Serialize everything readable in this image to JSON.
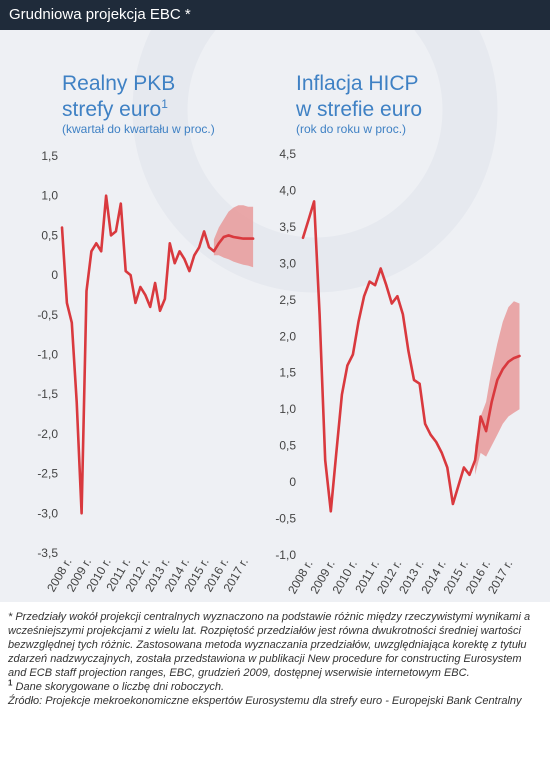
{
  "header": {
    "title": "Grudniowa projekcja EBC *"
  },
  "colors": {
    "line": "#d9393e",
    "band": "#e79a9a",
    "title": "#3f81c4",
    "panel": "#eef0f4",
    "header": "#1f2b3a"
  },
  "chart_data": [
    {
      "type": "line",
      "title": "Realny PKB",
      "title_line2": "strefy euro",
      "title_superscript": "1",
      "subtitle": "(kwartał do kwartału w proc.)",
      "xlabel": "",
      "ylabel": "",
      "ylim": [
        -3.5,
        1.5
      ],
      "yticks": [
        1.5,
        1.0,
        0.5,
        0,
        -0.5,
        -1.0,
        -1.5,
        -2.0,
        -2.5,
        -3.0,
        -3.5
      ],
      "ytick_labels": [
        "1,5",
        "1,0",
        "0,5",
        "0",
        "-0,5",
        "-1,0",
        "-1,5",
        "-2,0",
        "-2,5",
        "-3,0",
        "-3,5"
      ],
      "xlim": [
        2008.0,
        2018.0
      ],
      "xtick_values": [
        2008,
        2009,
        2010,
        2011,
        2012,
        2013,
        2014,
        2015,
        2016,
        2017
      ],
      "xtick_labels": [
        "2008 r.",
        "2009 r.",
        "2010 r.",
        "2011 r.",
        "2012 r.",
        "2013 r.",
        "2014 r.",
        "2015 r.",
        "2016 r.",
        "2017 r."
      ],
      "grid": false,
      "series": [
        {
          "x": [
            2008.0,
            2008.25,
            2008.5,
            2008.75,
            2009.0,
            2009.25,
            2009.5,
            2009.75,
            2010.0,
            2010.25,
            2010.5,
            2010.75,
            2011.0,
            2011.25,
            2011.5,
            2011.75,
            2012.0,
            2012.25,
            2012.5,
            2012.75,
            2013.0,
            2013.25,
            2013.5,
            2013.75,
            2014.0,
            2014.25,
            2014.5,
            2014.75,
            2015.0,
            2015.25,
            2015.5,
            2015.75,
            2016.0,
            2016.25,
            2016.5,
            2016.75,
            2017.0,
            2017.25,
            2017.5,
            2017.75
          ],
          "values": [
            0.6,
            -0.35,
            -0.6,
            -1.6,
            -3.0,
            -0.2,
            0.3,
            0.4,
            0.3,
            1.0,
            0.5,
            0.55,
            0.9,
            0.05,
            0.0,
            -0.35,
            -0.15,
            -0.25,
            -0.4,
            -0.1,
            -0.45,
            -0.3,
            0.4,
            0.15,
            0.3,
            0.2,
            0.05,
            0.25,
            0.35,
            0.55,
            0.35,
            0.3,
            0.4,
            0.48,
            0.5,
            0.48,
            0.47,
            0.46,
            0.46,
            0.46
          ]
        }
      ],
      "band": {
        "x": [
          2015.75,
          2016.0,
          2016.25,
          2016.5,
          2016.75,
          2017.0,
          2017.25,
          2017.5,
          2017.75
        ],
        "upper": [
          0.45,
          0.6,
          0.7,
          0.8,
          0.85,
          0.88,
          0.88,
          0.86,
          0.86
        ],
        "lower": [
          0.25,
          0.25,
          0.22,
          0.2,
          0.17,
          0.15,
          0.13,
          0.12,
          0.1
        ]
      }
    },
    {
      "type": "line",
      "title": "Inflacja HICP",
      "title_line2": "w strefie euro",
      "title_superscript": "",
      "subtitle": "(rok do roku w proc.)",
      "xlabel": "",
      "ylabel": "",
      "ylim": [
        -1.0,
        4.5
      ],
      "yticks": [
        4.5,
        4.0,
        3.5,
        3.0,
        2.5,
        2.0,
        1.5,
        1.0,
        0.5,
        0,
        -0.5,
        -1.0
      ],
      "ytick_labels": [
        "4,5",
        "4,0",
        "3,5",
        "3,0",
        "2,5",
        "2,0",
        "1,5",
        "1,0",
        "0,5",
        "0",
        "-0,5",
        "-1,0"
      ],
      "xlim": [
        2008.0,
        2018.0
      ],
      "xtick_values": [
        2008,
        2009,
        2010,
        2011,
        2012,
        2013,
        2014,
        2015,
        2016,
        2017
      ],
      "xtick_labels": [
        "2008 r.",
        "2009 r.",
        "2010 r.",
        "2011 r.",
        "2012 r.",
        "2013 r.",
        "2014 r.",
        "2015 r.",
        "2016 r.",
        "2017 r."
      ],
      "grid": false,
      "series": [
        {
          "x": [
            2008.0,
            2008.25,
            2008.5,
            2008.75,
            2009.0,
            2009.25,
            2009.5,
            2009.75,
            2010.0,
            2010.25,
            2010.5,
            2010.75,
            2011.0,
            2011.25,
            2011.5,
            2011.75,
            2012.0,
            2012.25,
            2012.5,
            2012.75,
            2013.0,
            2013.25,
            2013.5,
            2013.75,
            2014.0,
            2014.25,
            2014.5,
            2014.75,
            2015.0,
            2015.25,
            2015.5,
            2015.75,
            2016.0,
            2016.25,
            2016.5,
            2016.75,
            2017.0,
            2017.25,
            2017.5,
            2017.75
          ],
          "values": [
            3.35,
            3.6,
            3.85,
            2.3,
            0.3,
            -0.4,
            0.4,
            1.2,
            1.6,
            1.75,
            2.2,
            2.55,
            2.75,
            2.7,
            2.93,
            2.7,
            2.45,
            2.55,
            2.3,
            1.8,
            1.4,
            1.35,
            0.8,
            0.65,
            0.55,
            0.4,
            0.2,
            -0.3,
            -0.05,
            0.2,
            0.1,
            0.3,
            0.9,
            0.7,
            1.1,
            1.4,
            1.55,
            1.65,
            1.7,
            1.73
          ]
        }
      ],
      "band": {
        "x": [
          2015.75,
          2016.0,
          2016.25,
          2016.5,
          2016.75,
          2017.0,
          2017.25,
          2017.5,
          2017.75
        ],
        "upper": [
          0.5,
          0.9,
          1.1,
          1.55,
          1.9,
          2.2,
          2.4,
          2.48,
          2.45
        ],
        "lower": [
          0.1,
          0.4,
          0.35,
          0.5,
          0.65,
          0.8,
          0.9,
          0.95,
          1.0
        ]
      }
    }
  ],
  "footnotes": {
    "note_star": "* Przedziały wokół projekcji centralnych wyznaczono na podstawie różnic między rzeczywistymi wynikami a wcześniejszymi projekcjami z wielu lat. Rozpiętość przedziałów jest równa dwukrotności średniej wartości bezwzględnej tych różnic. Zastosowana metoda wyznaczania przedziałów, uwzględniająca korektę z tytułu zdarzeń nadzwyczajnych, została przedstawiona w publikacji New procedure for constructing Eurosystem and ECB staff projection ranges, EBC, grudzień 2009, dostępnej wserwisie internetowym EBC.",
    "note1_marker": "1",
    "note1": "Dane skorygowane o liczbę dni roboczych.",
    "source": "Źródło: Projekcje mekroekonomiczne ekspertów Eurosystemu dla strefy euro - Europejski Bank Centralny"
  }
}
